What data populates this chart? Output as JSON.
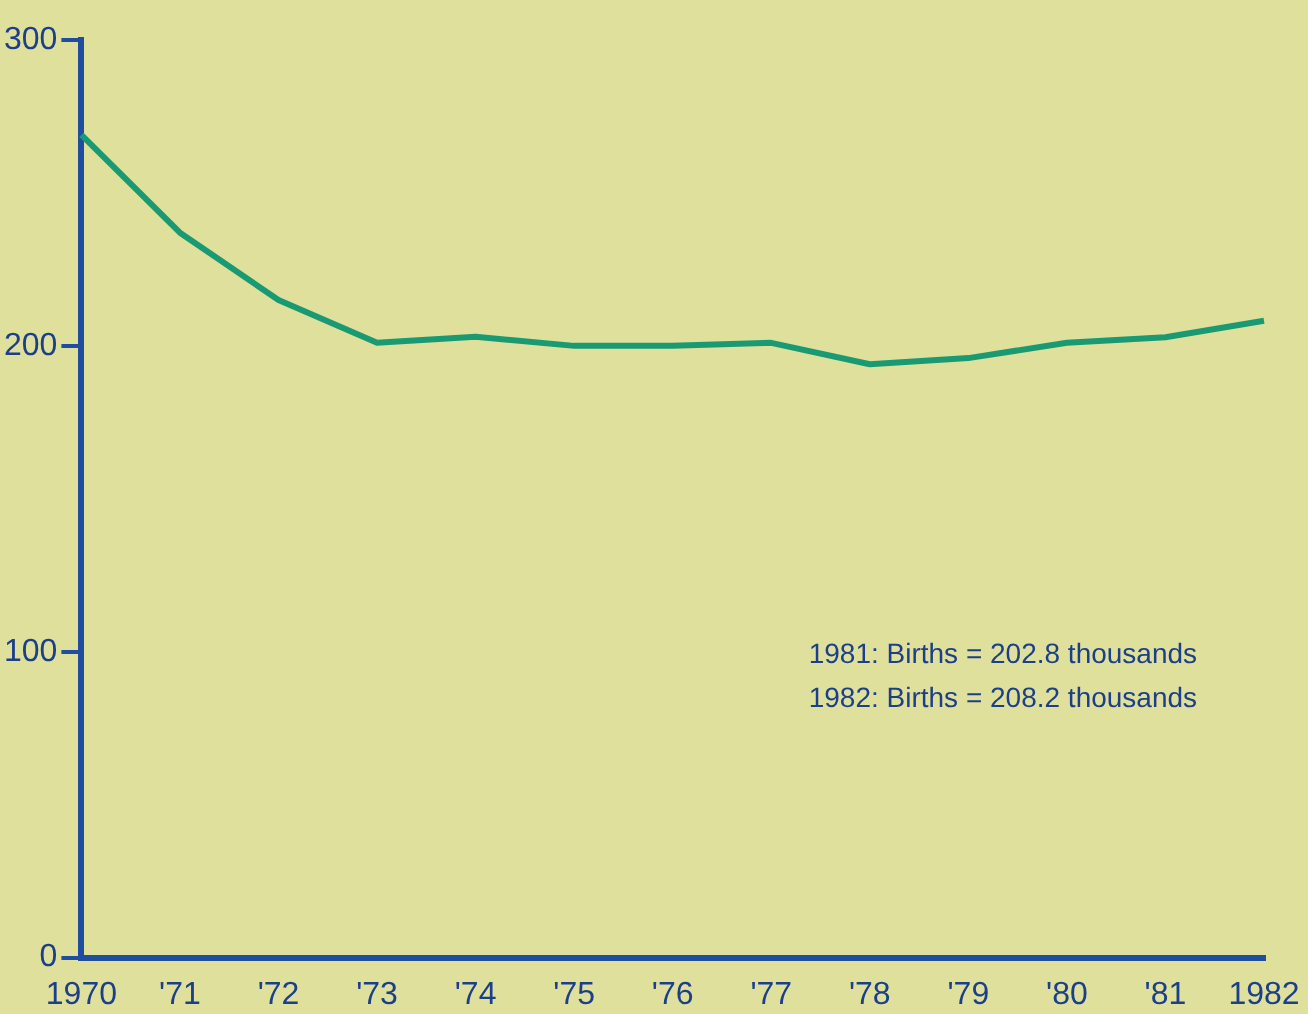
{
  "chart_data": {
    "type": "line",
    "categories": [
      "1970",
      "'71",
      "'72",
      "'73",
      "'74",
      "'75",
      "'76",
      "'77",
      "'78",
      "'79",
      "'80",
      "'81",
      "1982"
    ],
    "series": [
      {
        "color": "#1a9a72",
        "values": [
          269,
          237,
          215,
          201,
          203,
          200,
          200,
          201,
          194,
          196,
          201,
          202.8,
          208.2
        ]
      }
    ],
    "ylim": [
      0,
      300
    ],
    "yticks": [
      0,
      100,
      200,
      300
    ],
    "grid": false,
    "legend": false,
    "marker": "none",
    "line_style": "solid",
    "annotations": [
      "1981: Births = 202.8 thousands",
      "1982: Births = 208.2 thousands"
    ]
  }
}
